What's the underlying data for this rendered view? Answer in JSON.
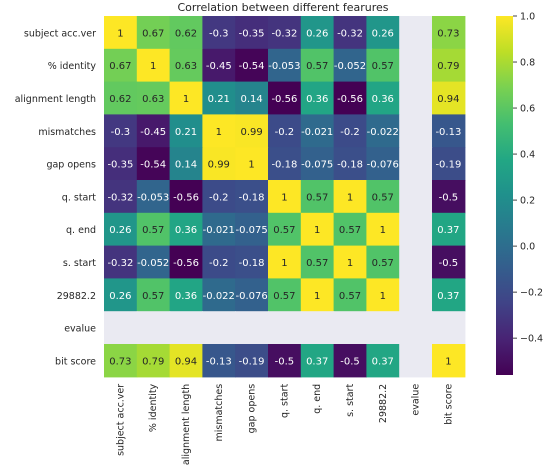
{
  "chart_data": {
    "type": "heatmap",
    "title": "Correlation between different fearures",
    "row_labels": [
      "subject acc.ver",
      "% identity",
      "alignment length",
      "mismatches",
      "gap opens",
      "q. start",
      "q. end",
      "s. start",
      "29882.2",
      "evalue",
      "bit score"
    ],
    "col_labels": [
      "subject acc.ver",
      "% identity",
      "alignment length",
      "mismatches",
      "gap opens",
      "q. start",
      "q. end",
      "s. start",
      "29882.2",
      "evalue",
      "bit score"
    ],
    "values": [
      [
        1,
        0.67,
        0.62,
        -0.3,
        -0.35,
        -0.32,
        0.26,
        -0.32,
        0.26,
        null,
        0.73
      ],
      [
        0.67,
        1,
        0.63,
        -0.45,
        -0.54,
        -0.053,
        0.57,
        -0.052,
        0.57,
        null,
        0.79
      ],
      [
        0.62,
        0.63,
        1,
        0.21,
        0.14,
        -0.56,
        0.36,
        -0.56,
        0.36,
        null,
        0.94
      ],
      [
        -0.3,
        -0.45,
        0.21,
        1,
        0.99,
        -0.2,
        -0.021,
        -0.2,
        -0.022,
        null,
        -0.13
      ],
      [
        -0.35,
        -0.54,
        0.14,
        0.99,
        1,
        -0.18,
        -0.075,
        -0.18,
        -0.076,
        null,
        -0.19
      ],
      [
        -0.32,
        -0.053,
        -0.56,
        -0.2,
        -0.18,
        1,
        0.57,
        1,
        0.57,
        null,
        -0.5
      ],
      [
        0.26,
        0.57,
        0.36,
        -0.021,
        -0.075,
        0.57,
        1,
        0.57,
        1,
        null,
        0.37
      ],
      [
        -0.32,
        -0.052,
        -0.56,
        -0.2,
        -0.18,
        1,
        0.57,
        1,
        0.57,
        null,
        -0.5
      ],
      [
        0.26,
        0.57,
        0.36,
        -0.022,
        -0.076,
        0.57,
        1,
        0.57,
        1,
        null,
        0.37
      ],
      [
        null,
        null,
        null,
        null,
        null,
        null,
        null,
        null,
        null,
        null,
        null
      ],
      [
        0.73,
        0.79,
        0.94,
        -0.13,
        -0.19,
        -0.5,
        0.37,
        -0.5,
        0.37,
        null,
        1
      ]
    ],
    "colormap": "viridis",
    "vmin": -0.56,
    "vmax": 1.0,
    "missing_color": "#eaeaf2",
    "colorbar_ticks": [
      "1.0",
      "0.8",
      "0.6",
      "0.4",
      "0.2",
      "0.0",
      "-0.2",
      "-0.4"
    ],
    "annotations": true,
    "legend": "colorbar-right"
  }
}
